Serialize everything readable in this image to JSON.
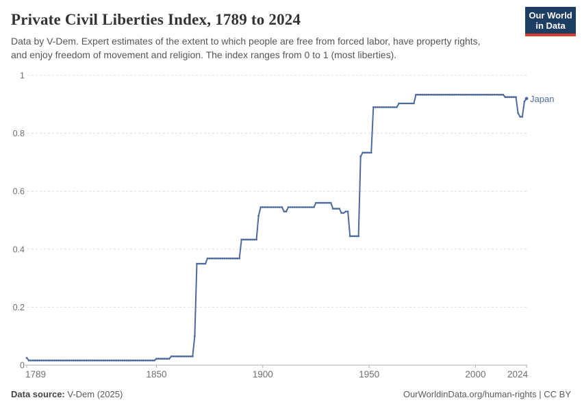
{
  "header": {
    "title": "Private Civil Liberties Index, 1789 to 2024",
    "subtitle_lines": [
      "Data by V-Dem. Expert estimates of the extent to which people are free from forced labor, have property rights,",
      "and enjoy freedom of movement and religion. The index ranges from 0 to 1 (most liberties)."
    ]
  },
  "logo": {
    "line1": "Our World",
    "line2": "in Data",
    "bg_color": "#1d3d63",
    "accent_color": "#d93a2d"
  },
  "chart_data": {
    "type": "line",
    "title": "Private Civil Liberties Index, 1789 to 2024",
    "xlabel": "",
    "ylabel": "",
    "xlim": [
      1789,
      2024
    ],
    "ylim": [
      0,
      1
    ],
    "x_ticks": [
      1789,
      1850,
      1900,
      1950,
      2000,
      2024
    ],
    "y_ticks": [
      0,
      0.2,
      0.4,
      0.6,
      0.8,
      1
    ],
    "grid": "horizontal-dashed",
    "legend_position": "end-of-line",
    "grid_color": "#dcdcdc",
    "axis_color": "#b0b0b0",
    "tick_label_color": "#6e6e6e",
    "series": [
      {
        "name": "Japan",
        "color": "#4C6A9C",
        "points_note": "yearly stepped data; vertices [year,value], values between vertices are linearly interpolated",
        "points": [
          [
            1789,
            0.025
          ],
          [
            1790,
            0.016
          ],
          [
            1849,
            0.016
          ],
          [
            1850,
            0.022
          ],
          [
            1856,
            0.022
          ],
          [
            1857,
            0.03
          ],
          [
            1867,
            0.03
          ],
          [
            1868,
            0.1
          ],
          [
            1869,
            0.35
          ],
          [
            1873,
            0.35
          ],
          [
            1874,
            0.368
          ],
          [
            1889,
            0.368
          ],
          [
            1890,
            0.433
          ],
          [
            1897,
            0.433
          ],
          [
            1898,
            0.515
          ],
          [
            1899,
            0.545
          ],
          [
            1909,
            0.545
          ],
          [
            1910,
            0.53
          ],
          [
            1911,
            0.53
          ],
          [
            1912,
            0.545
          ],
          [
            1924,
            0.545
          ],
          [
            1925,
            0.56
          ],
          [
            1932,
            0.56
          ],
          [
            1933,
            0.54
          ],
          [
            1936,
            0.54
          ],
          [
            1937,
            0.525
          ],
          [
            1938,
            0.525
          ],
          [
            1939,
            0.53
          ],
          [
            1940,
            0.53
          ],
          [
            1941,
            0.445
          ],
          [
            1945,
            0.445
          ],
          [
            1946,
            0.72
          ],
          [
            1947,
            0.733
          ],
          [
            1951,
            0.733
          ],
          [
            1952,
            0.89
          ],
          [
            1963,
            0.89
          ],
          [
            1964,
            0.903
          ],
          [
            1971,
            0.903
          ],
          [
            1972,
            0.933
          ],
          [
            2013,
            0.933
          ],
          [
            2014,
            0.925
          ],
          [
            2019,
            0.925
          ],
          [
            2020,
            0.87
          ],
          [
            2021,
            0.857
          ],
          [
            2022,
            0.857
          ],
          [
            2023,
            0.91
          ],
          [
            2024,
            0.92
          ]
        ]
      }
    ]
  },
  "footer": {
    "source_label": "Data source:",
    "source_value": "V-Dem (2025)",
    "right_text": "OurWorldinData.org/human-rights | CC BY"
  }
}
